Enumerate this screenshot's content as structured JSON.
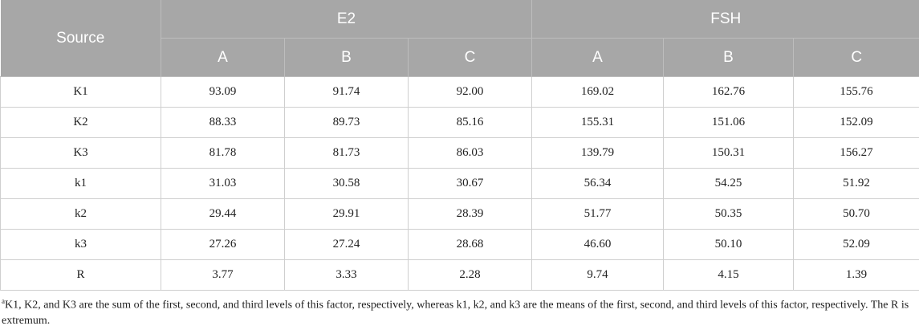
{
  "table": {
    "header": {
      "source": "Source",
      "groups": [
        "E2",
        "FSH"
      ],
      "subcolumns": [
        "A",
        "B",
        "C",
        "A",
        "B",
        "C"
      ]
    },
    "rows": [
      [
        "K1",
        "93.09",
        "91.74",
        "92.00",
        "169.02",
        "162.76",
        "155.76"
      ],
      [
        "K2",
        "88.33",
        "89.73",
        "85.16",
        "155.31",
        "151.06",
        "152.09"
      ],
      [
        "K3",
        "81.78",
        "81.73",
        "86.03",
        "139.79",
        "150.31",
        "156.27"
      ],
      [
        "k1",
        "31.03",
        "30.58",
        "30.67",
        "56.34",
        "54.25",
        "51.92"
      ],
      [
        "k2",
        "29.44",
        "29.91",
        "28.39",
        "51.77",
        "50.35",
        "50.70"
      ],
      [
        "k3",
        "27.26",
        "27.24",
        "28.68",
        "46.60",
        "50.10",
        "52.09"
      ],
      [
        "R",
        "3.77",
        "3.33",
        "2.28",
        "9.74",
        "4.15",
        "1.39"
      ]
    ],
    "footnote": {
      "marker": "a",
      "text": "K1, K2, and K3 are the sum of the first, second, and third levels of this factor, respectively, whereas k1, k2, and k3 are the means of the first, second, and third levels of this factor, respectively. The R is extremum."
    }
  }
}
